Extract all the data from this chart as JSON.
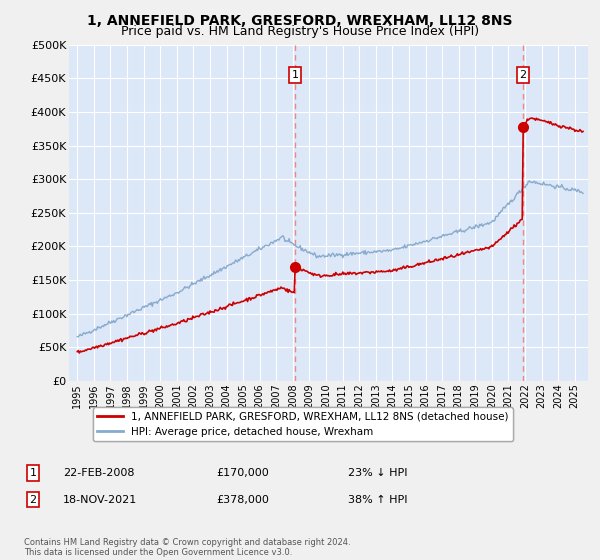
{
  "title": "1, ANNEFIELD PARK, GRESFORD, WREXHAM, LL12 8NS",
  "subtitle": "Price paid vs. HM Land Registry's House Price Index (HPI)",
  "ylim": [
    0,
    500000
  ],
  "yticks": [
    0,
    50000,
    100000,
    150000,
    200000,
    250000,
    300000,
    350000,
    400000,
    450000,
    500000
  ],
  "ytick_labels": [
    "£0",
    "£50K",
    "£100K",
    "£150K",
    "£200K",
    "£250K",
    "£300K",
    "£350K",
    "£400K",
    "£450K",
    "£500K"
  ],
  "fig_bg_color": "#f0f0f0",
  "plot_bg_color": "#dce8f8",
  "grid_color": "#ffffff",
  "sale1_date": 2008.13,
  "sale1_price": 170000,
  "sale1_label": "1",
  "sale2_date": 2021.88,
  "sale2_price": 378000,
  "sale2_label": "2",
  "red_line_color": "#cc0000",
  "blue_line_color": "#88aacc",
  "annotation_box_color": "#cc0000",
  "vline_color": "#ee8888",
  "legend_label_red": "1, ANNEFIELD PARK, GRESFORD, WREXHAM, LL12 8NS (detached house)",
  "legend_label_blue": "HPI: Average price, detached house, Wrexham",
  "table_rows": [
    {
      "num": "1",
      "date": "22-FEB-2008",
      "price": "£170,000",
      "hpi": "23% ↓ HPI"
    },
    {
      "num": "2",
      "date": "18-NOV-2021",
      "price": "£378,000",
      "hpi": "38% ↑ HPI"
    }
  ],
  "footnote": "Contains HM Land Registry data © Crown copyright and database right 2024.\nThis data is licensed under the Open Government Licence v3.0.",
  "title_fontsize": 10,
  "subtitle_fontsize": 9
}
